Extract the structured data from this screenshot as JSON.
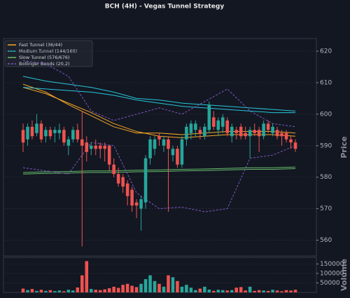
{
  "chart_data": {
    "type": "candlestick",
    "title": "BCH (4H) - Vegas Tunnel Strategy",
    "ylabel": "Price",
    "up_color": "#26a69a",
    "down_color": "#ef5350",
    "grid": true,
    "legend": "upper left",
    "ylim": [
      555,
      624
    ],
    "yticks": [
      560,
      570,
      580,
      590,
      600,
      610,
      620
    ],
    "open": [
      595,
      592,
      596,
      594,
      597,
      593,
      595,
      594,
      594,
      595,
      590,
      592,
      595,
      592,
      591,
      589,
      590,
      590,
      590,
      590,
      584,
      581,
      580,
      578,
      576,
      572,
      570,
      572,
      586,
      589,
      593,
      590,
      592,
      587,
      589,
      584,
      592,
      594,
      595,
      595,
      593,
      595,
      599,
      595,
      596,
      598,
      593,
      595,
      596,
      594,
      593,
      595,
      595,
      593,
      597,
      594,
      595,
      594,
      594,
      592,
      591
    ],
    "high": [
      597,
      597,
      598,
      600,
      598,
      596,
      596,
      596,
      597,
      596,
      593,
      596,
      597,
      601,
      593,
      591,
      592,
      591,
      591,
      590,
      586,
      583,
      581,
      579,
      577,
      573,
      574,
      587,
      593,
      593,
      594,
      593,
      593,
      590,
      590,
      593,
      597,
      598,
      598,
      596,
      597,
      604,
      601,
      599,
      600,
      599,
      597,
      596,
      597,
      596,
      596,
      597,
      596,
      598,
      598,
      597,
      596,
      595,
      595,
      593,
      592
    ],
    "low": [
      588,
      590,
      592,
      593,
      591,
      591,
      592,
      591,
      592,
      590,
      587,
      591,
      591,
      558,
      585,
      587,
      587,
      586,
      585,
      582,
      580,
      577,
      575,
      571,
      569,
      567,
      563,
      570,
      584,
      587,
      590,
      588,
      569,
      585,
      583,
      583,
      590,
      592,
      593,
      592,
      592,
      594,
      595,
      593,
      594,
      593,
      591,
      592,
      592,
      592,
      586,
      593,
      588,
      592,
      594,
      593,
      592,
      590,
      591,
      589,
      588
    ],
    "close": [
      591,
      596,
      593,
      597,
      592,
      595,
      593,
      595,
      595,
      591,
      592,
      595,
      592,
      590,
      588,
      590,
      589,
      589,
      589,
      584,
      581,
      578,
      577,
      574,
      571,
      571,
      573,
      586,
      592,
      592,
      592,
      592,
      589,
      589,
      584,
      592,
      596,
      597,
      597,
      594,
      596,
      603,
      596,
      598,
      599,
      594,
      596,
      594,
      593,
      593,
      595,
      594,
      593,
      597,
      595,
      596,
      593,
      593,
      592,
      591,
      589
    ],
    "overlays": [
      {
        "name": "Fast Tunnel (36/44)",
        "color": "#f5a623",
        "dash": false,
        "x": [
          0,
          5,
          10,
          15,
          20,
          25,
          30,
          35,
          40,
          45,
          50,
          55,
          60
        ],
        "lines": [
          [
            609.5,
            607,
            603,
            599.5,
            596,
            594,
            594,
            593.5,
            594,
            594.5,
            594.5,
            594.5,
            594
          ],
          [
            608.5,
            606.5,
            603.5,
            600.5,
            597,
            594.5,
            593,
            592.5,
            593,
            593.5,
            593.5,
            593.5,
            593
          ]
        ]
      },
      {
        "name": "Medium Tunnel (144/169)",
        "color": "#26c6da",
        "dash": false,
        "x": [
          0,
          5,
          10,
          15,
          20,
          25,
          30,
          35,
          40,
          45,
          50,
          55,
          60
        ],
        "lines": [
          [
            612,
            610.5,
            609.5,
            608.5,
            607,
            605,
            604.5,
            603.5,
            603,
            602.5,
            602,
            601.5,
            601
          ],
          [
            608.5,
            608,
            607.5,
            607,
            606,
            604.5,
            603.5,
            602.5,
            602,
            601.5,
            601,
            600.5,
            600.5
          ]
        ]
      },
      {
        "name": "Slow Tunnel (576/676)",
        "color": "#66bb6a",
        "dash": false,
        "x": [
          0,
          5,
          10,
          15,
          20,
          25,
          30,
          35,
          40,
          45,
          50,
          55,
          60
        ],
        "lines": [
          [
            581.5,
            581.7,
            581.8,
            582,
            582,
            582.2,
            582.3,
            582.5,
            582.6,
            582.8,
            583,
            583,
            583.2
          ],
          [
            581,
            581.2,
            581.3,
            581.5,
            581.5,
            581.7,
            581.8,
            582,
            582.1,
            582.3,
            582.5,
            582.5,
            582.7
          ]
        ]
      },
      {
        "name": "Bollinger Bands (20,2)",
        "color": "#7e57c2",
        "dash": true,
        "x": [
          0,
          5,
          10,
          15,
          20,
          25,
          30,
          35,
          40,
          45,
          50,
          55,
          60
        ],
        "lines": [
          [
            617,
            616,
            612,
            601,
            598,
            600,
            602,
            600,
            604,
            608,
            601,
            597,
            596
          ],
          [
            583,
            582,
            581,
            591,
            590,
            575,
            570,
            570.5,
            569,
            570,
            586,
            587,
            590
          ]
        ]
      }
    ],
    "volume": {
      "ylabel": "Volume",
      "ylim": [
        0,
        185000
      ],
      "yticks": [
        50000,
        100000,
        150000
      ],
      "values": [
        20000,
        12000,
        18000,
        8000,
        14000,
        8000,
        12000,
        7000,
        10000,
        6000,
        14000,
        10000,
        26000,
        90000,
        165000,
        18000,
        14000,
        12000,
        16000,
        22000,
        30000,
        24000,
        40000,
        45000,
        35000,
        28000,
        45000,
        70000,
        90000,
        60000,
        45000,
        30000,
        90000,
        80000,
        60000,
        30000,
        40000,
        25000,
        12000,
        20000,
        30000,
        15000,
        8000,
        14000,
        12000,
        10000,
        12000,
        25000,
        28000,
        10000,
        30000,
        8000,
        12000,
        10000,
        8000,
        14000,
        10000,
        6000,
        12000,
        10000,
        14000
      ]
    }
  }
}
